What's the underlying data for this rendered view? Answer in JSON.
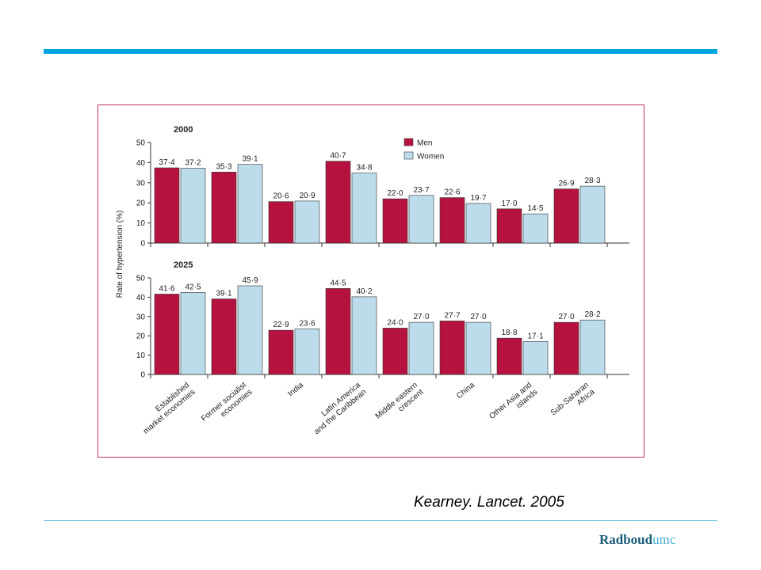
{
  "chart_data": {
    "type": "bar",
    "ylabel": "Rate of hypertension (%)",
    "ylim": [
      0,
      50
    ],
    "yticks": [
      0,
      10,
      20,
      30,
      40,
      50
    ],
    "categories": [
      [
        "Established",
        "market economies"
      ],
      [
        "Former socialist",
        "economies"
      ],
      [
        "India"
      ],
      [
        "Latin America",
        "and the Caribbean"
      ],
      [
        "Middle eastern",
        "crescent"
      ],
      [
        "China"
      ],
      [
        "Other Asia and",
        "islands"
      ],
      [
        "Sub-Saharan",
        "Africa"
      ]
    ],
    "legend": {
      "placement": "top-center",
      "entries": [
        "Men",
        "Women"
      ]
    },
    "panels": [
      {
        "title": "2000",
        "series": [
          {
            "name": "Men",
            "values": [
              37.4,
              35.3,
              20.6,
              40.7,
              22.0,
              22.6,
              17.0,
              26.9
            ],
            "labels": [
              "37·4",
              "35·3",
              "20·6",
              "40·7",
              "22·0",
              "22·6",
              "17·0",
              "26·9"
            ]
          },
          {
            "name": "Women",
            "values": [
              37.2,
              39.1,
              20.9,
              34.8,
              23.7,
              19.7,
              14.5,
              28.3
            ],
            "labels": [
              "37·2",
              "39·1",
              "20·9",
              "34·8",
              "23·7",
              "19·7",
              "14·5",
              "28·3"
            ]
          }
        ]
      },
      {
        "title": "2025",
        "series": [
          {
            "name": "Men",
            "values": [
              41.6,
              39.1,
              22.9,
              44.5,
              24.0,
              27.7,
              18.8,
              27.0
            ],
            "labels": [
              "41·6",
              "39·1",
              "22·9",
              "44·5",
              "24·0",
              "27·7",
              "18·8",
              "27·0"
            ]
          },
          {
            "name": "Women",
            "values": [
              42.5,
              45.9,
              23.6,
              40.2,
              27.0,
              27.0,
              17.1,
              28.2
            ],
            "labels": [
              "42·5",
              "45·9",
              "23·6",
              "40·2",
              "27·0",
              "27·0",
              "17·1",
              "28·2"
            ]
          }
        ]
      }
    ],
    "colors": {
      "men": "#b5123f",
      "women": "#bcdcec",
      "edge": "#333333"
    }
  },
  "citation": "Kearney. Lancet. 2005",
  "logo": {
    "part1": "Radboud",
    "part2": "umc"
  }
}
